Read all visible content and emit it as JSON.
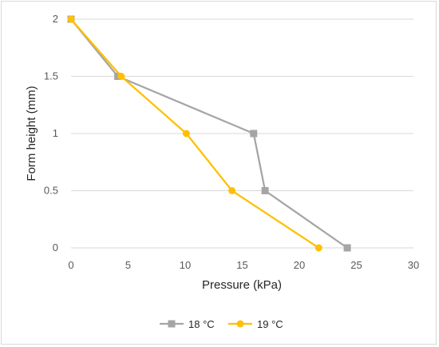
{
  "chart_data": {
    "type": "line",
    "title": "",
    "xlabel": "Pressure (kPa)",
    "ylabel": "Form height (mm)",
    "xlim": [
      0,
      30
    ],
    "ylim": [
      0,
      2
    ],
    "xticks": [
      0,
      5,
      10,
      15,
      20,
      25,
      30
    ],
    "yticks": [
      0,
      0.5,
      1,
      1.5,
      2
    ],
    "xtick_labels": [
      "0",
      "5",
      "10",
      "15",
      "20",
      "25",
      "30"
    ],
    "ytick_labels": [
      "0",
      "0.5",
      "1",
      "1.5",
      "2"
    ],
    "grid": "horizontal",
    "legend_position": "bottom",
    "series": [
      {
        "name": "18 °C",
        "color": "#a5a5a5",
        "marker": "square",
        "x": [
          0,
          4.1,
          16,
          17,
          24.2
        ],
        "y": [
          2,
          1.5,
          1,
          0.5,
          0
        ]
      },
      {
        "name": "19 °C",
        "color": "#ffc000",
        "marker": "circle",
        "x": [
          0,
          4.4,
          10.1,
          14.1,
          21.7
        ],
        "y": [
          2,
          1.5,
          1,
          0.5,
          0
        ]
      }
    ]
  }
}
